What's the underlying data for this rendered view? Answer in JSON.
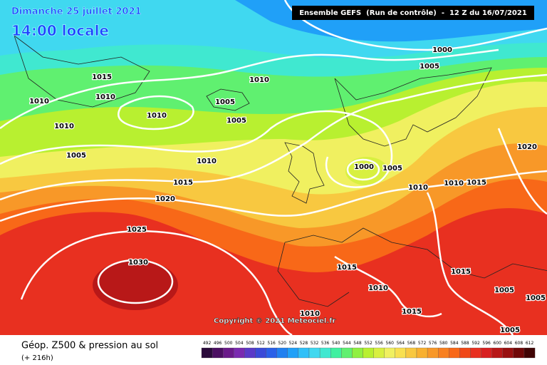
{
  "header": {
    "date": "Dimanche 25 juillet 2021",
    "local_time": "14:00 locale",
    "run": "Ensemble GEFS  (Run de contrôle)  -  12 Z du 16/07/2021"
  },
  "copyright": "Copyright © 2021 Meteociel.fr",
  "footer": {
    "title": "Géop. Z500 & pression au sol",
    "lead": "(+ 216h)"
  },
  "isobar_labels": [
    1000,
    1005,
    1015,
    1010,
    1010,
    1010,
    1005,
    1010,
    1005,
    1010,
    1020,
    1005,
    1010,
    1000,
    1005,
    1015,
    1010,
    1010,
    1015,
    1020,
    1025,
    1030,
    1015,
    1015,
    1010,
    1005,
    1005,
    1015,
    1010,
    1005
  ],
  "legend": {
    "values": [
      492,
      496,
      500,
      504,
      508,
      512,
      516,
      520,
      524,
      528,
      532,
      536,
      540,
      544,
      548,
      552,
      556,
      560,
      564,
      568,
      572,
      576,
      580,
      584,
      588,
      592,
      596,
      600,
      604,
      608,
      612
    ],
    "colors": [
      "#2a0a3a",
      "#4b0f62",
      "#6a1a8a",
      "#7a2ab0",
      "#5a3ac8",
      "#3a4ad8",
      "#2a60e8",
      "#2080f0",
      "#20a0f8",
      "#30c0f8",
      "#40d8f0",
      "#40e8d0",
      "#40f0a0",
      "#60f070",
      "#90f040",
      "#b8f030",
      "#d8f040",
      "#f0f060",
      "#f8e050",
      "#f8c840",
      "#f8b030",
      "#f89828",
      "#f88020",
      "#f86818",
      "#f04818",
      "#e83020",
      "#d82020",
      "#b81818",
      "#981010",
      "#700808",
      "#400404"
    ]
  }
}
